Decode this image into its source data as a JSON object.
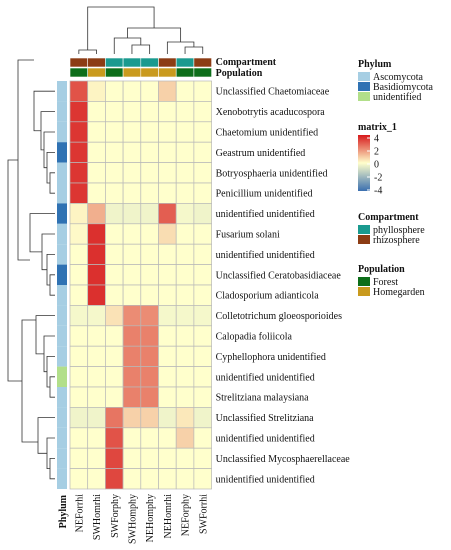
{
  "chart_data": {
    "type": "heatmap",
    "title": "",
    "columns": [
      "NEForrhi",
      "SWHomrhi",
      "SWForphy",
      "SWHomphy",
      "NEHomphy",
      "NEHomrhi",
      "NEForphy",
      "SWForrhi"
    ],
    "rows": [
      "Unclassified Chaetomiaceae",
      "Xenobotrytis acaducospora",
      "Chaetomium unidentified",
      "Geastrum unidentified",
      "Botryosphaeria unidentified",
      "Penicillium unidentified",
      "unidentified unidentified",
      "Fusarium solani",
      "unidentified unidentified",
      "Unclassified Ceratobasidiaceae",
      "Cladosporium adianticola",
      "Colletotrichum gloeosporioides",
      "Calopadia foliicola",
      "Cyphellophora unidentified",
      "unidentified unidentified",
      "Strelitziana malaysiana",
      "Unclassified  Strelitziana",
      "unidentified unidentified",
      "Unclassified Mycosphaerellaceae",
      "unidentified unidentified"
    ],
    "values": [
      [
        3.0,
        0.2,
        0.0,
        0.0,
        0.0,
        0.8,
        0.0,
        0.0
      ],
      [
        3.5,
        0.0,
        0.0,
        0.0,
        0.0,
        0.0,
        0.0,
        0.0
      ],
      [
        3.5,
        0.0,
        0.0,
        0.0,
        0.0,
        0.0,
        0.0,
        0.0
      ],
      [
        3.5,
        0.0,
        0.0,
        0.0,
        0.0,
        0.0,
        0.0,
        0.0
      ],
      [
        3.5,
        0.0,
        0.0,
        0.0,
        0.0,
        0.0,
        0.0,
        0.0
      ],
      [
        3.5,
        0.0,
        0.0,
        0.0,
        0.0,
        0.0,
        0.0,
        0.0
      ],
      [
        0.2,
        1.4,
        -0.3,
        -0.3,
        -0.3,
        2.8,
        -0.2,
        -0.3
      ],
      [
        0.1,
        3.6,
        0.0,
        0.0,
        0.0,
        0.6,
        0.0,
        0.0
      ],
      [
        0.0,
        3.6,
        0.0,
        0.0,
        0.0,
        0.0,
        0.0,
        0.0
      ],
      [
        0.0,
        3.6,
        0.0,
        0.0,
        0.0,
        0.0,
        0.0,
        0.0
      ],
      [
        0.0,
        3.6,
        0.0,
        0.0,
        0.0,
        0.0,
        0.0,
        0.0
      ],
      [
        -0.2,
        -0.2,
        0.5,
        2.0,
        2.0,
        -0.2,
        -0.2,
        -0.2
      ],
      [
        0.0,
        0.0,
        0.0,
        2.2,
        2.2,
        0.0,
        0.0,
        0.0
      ],
      [
        0.0,
        0.0,
        0.0,
        2.2,
        2.2,
        0.0,
        0.0,
        0.0
      ],
      [
        0.0,
        0.0,
        0.0,
        2.2,
        2.2,
        0.0,
        0.0,
        0.0
      ],
      [
        0.0,
        0.0,
        0.0,
        2.2,
        2.2,
        0.0,
        0.0,
        0.0
      ],
      [
        -0.3,
        -0.3,
        2.4,
        0.8,
        0.8,
        -0.3,
        0.4,
        -0.3
      ],
      [
        0.0,
        0.0,
        3.0,
        0.0,
        0.0,
        0.0,
        0.8,
        0.0
      ],
      [
        0.0,
        0.0,
        3.2,
        0.0,
        0.0,
        0.0,
        0.0,
        0.0
      ],
      [
        0.0,
        0.0,
        3.2,
        0.0,
        0.0,
        0.0,
        0.0,
        0.0
      ]
    ],
    "color_scale": {
      "title": "matrix_1",
      "ticks": [
        "4",
        "2",
        "0",
        "-2",
        "-4"
      ],
      "range": [
        -4,
        4
      ],
      "colors": {
        "low": "#3a6fb0",
        "mid": "#ffffcc",
        "high": "#d7191c"
      }
    },
    "compartment_row": [
      "rhizosphere",
      "rhizosphere",
      "phyllosphere",
      "phyllosphere",
      "phyllosphere",
      "rhizosphere",
      "phyllosphere",
      "rhizosphere"
    ],
    "population_row": [
      "Forest",
      "Homegarden",
      "Forest",
      "Homegarden",
      "Homegarden",
      "Homegarden",
      "Forest",
      "Forest"
    ],
    "phylum_col": [
      "Ascomycota",
      "Ascomycota",
      "Ascomycota",
      "Basidiomycota",
      "Ascomycota",
      "Ascomycota",
      "Basidiomycota",
      "Ascomycota",
      "Ascomycota",
      "Basidiomycota",
      "Ascomycota",
      "Ascomycota",
      "Ascomycota",
      "Ascomycota",
      "unidentified",
      "Ascomycota",
      "Ascomycota",
      "Ascomycota",
      "Ascomycota",
      "Ascomycota"
    ],
    "annotation_labels": {
      "compartment": "Compartment",
      "population": "Population",
      "phylum": "Phylum"
    },
    "legends": {
      "phylum": {
        "title": "Phylum",
        "items": [
          {
            "label": "Ascomycota",
            "color": "#a6cee3"
          },
          {
            "label": "Basidiomycota",
            "color": "#2f72b3"
          },
          {
            "label": "unidentified",
            "color": "#b2df8a"
          }
        ]
      },
      "compartment": {
        "title": "Compartment",
        "items": [
          {
            "label": "phyllosphere",
            "color": "#1a9a8f"
          },
          {
            "label": "rhizosphere",
            "color": "#8c3c14"
          }
        ]
      },
      "population": {
        "title": "Population",
        "items": [
          {
            "label": "Forest",
            "color": "#0d6e1a"
          },
          {
            "label": "Homegarden",
            "color": "#c99a1e"
          }
        ]
      }
    }
  }
}
